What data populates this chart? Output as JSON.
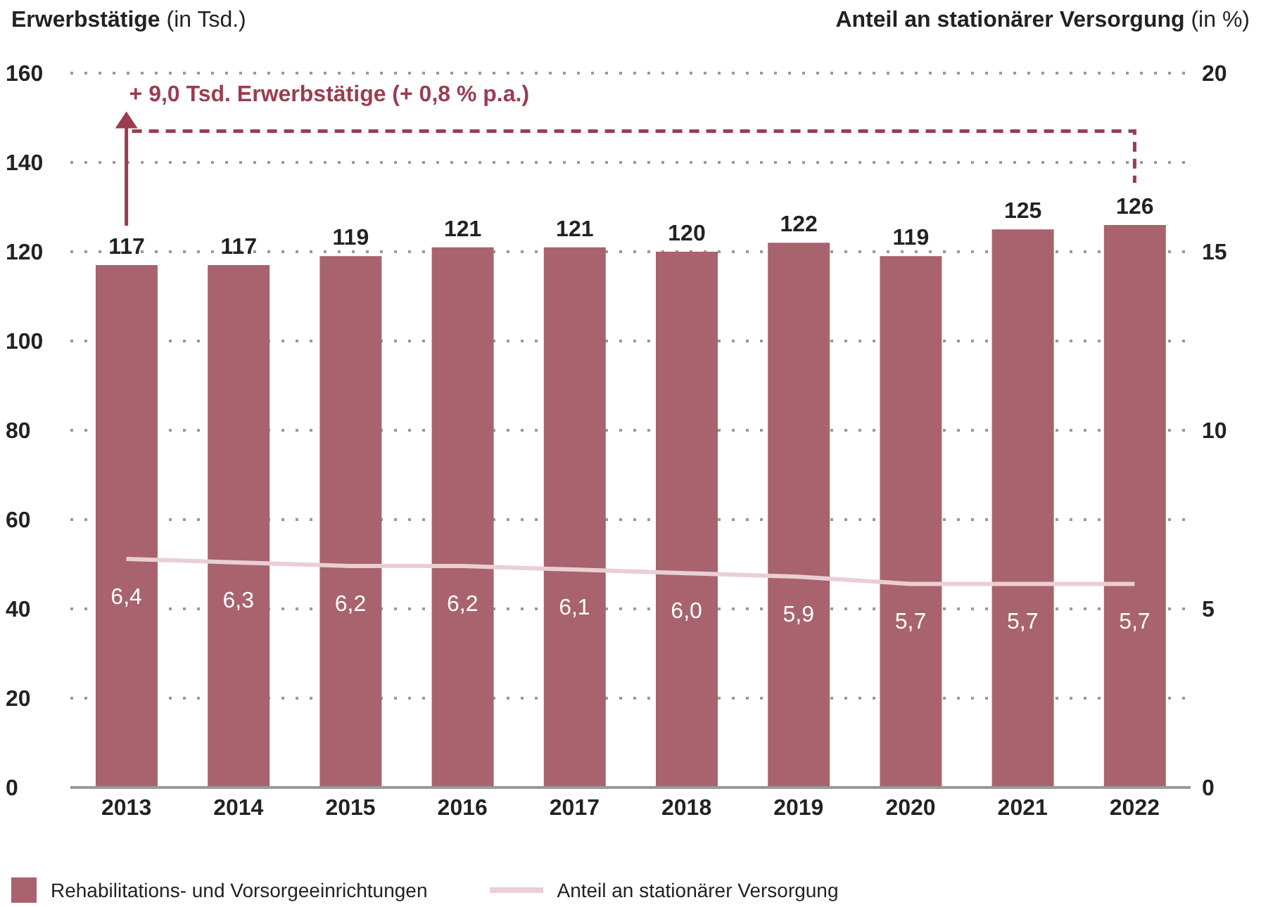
{
  "chart_data": {
    "type": "bar",
    "ylabel": "Erwerbstätige (in Tsd.)",
    "y2label": "Anteil an stationärer Versorgung (in %)",
    "categories": [
      "2013",
      "2014",
      "2015",
      "2016",
      "2017",
      "2018",
      "2019",
      "2020",
      "2021",
      "2022"
    ],
    "series": [
      {
        "name": "Rehabilitations- und Vorsorgeeinrichtungen",
        "color": "#a8636e",
        "values": [
          117,
          117,
          119,
          121,
          121,
          120,
          122,
          119,
          125,
          126
        ],
        "value_labels": [
          "117",
          "117",
          "119",
          "121",
          "121",
          "120",
          "122",
          "119",
          "125",
          "126"
        ]
      },
      {
        "name": "Anteil an stationärer Versorgung",
        "type": "line",
        "axis": "y2",
        "color": "#e9cfd3",
        "values": [
          6.4,
          6.3,
          6.2,
          6.2,
          6.1,
          6.0,
          5.9,
          5.7,
          5.7,
          5.7
        ],
        "value_labels": [
          "6,4",
          "6,3",
          "6,2",
          "6,2",
          "6,1",
          "6,0",
          "5,9",
          "5,7",
          "5,7",
          "5,7"
        ]
      }
    ],
    "ylim": [
      0,
      160
    ],
    "yticks": [
      0,
      20,
      40,
      60,
      80,
      100,
      120,
      140,
      160
    ],
    "y2lim": [
      0,
      20
    ],
    "y2ticks": [
      0,
      5,
      10,
      15,
      20
    ],
    "grid": "y",
    "legend": "bottom",
    "marker": "none",
    "annotations": [
      "+ 9,0 Tsd. Erwerbstätige (+ 0,8 % p.a.)"
    ]
  }
}
